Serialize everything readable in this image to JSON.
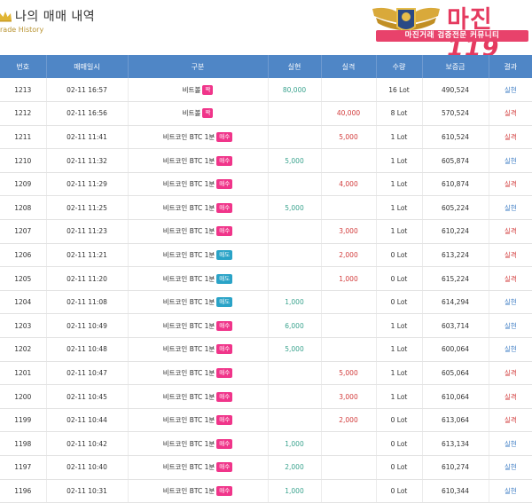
{
  "header": {
    "title": "나의 매매 내역",
    "subtitle": "rade History"
  },
  "logo": {
    "text": "마진",
    "number": "119",
    "tagline": "마진거래 검증전문 커뮤니티"
  },
  "colors": {
    "header_bg": "#4f86c6",
    "profit": "#3aa38e",
    "loss": "#d23b3b",
    "win": "#3e7dc4",
    "badge_buy": "#f0358a",
    "badge_sell": "#2aa3c7",
    "subtitle": "#b8922e"
  },
  "table": {
    "columns": [
      "번호",
      "매매일시",
      "구분",
      "실현",
      "실격",
      "수량",
      "보증금",
      "결과"
    ],
    "rows": [
      {
        "no": "1213",
        "datetime": "02-11 16:57",
        "type": "비트볼",
        "badge": "짝",
        "badge_kind": "buy",
        "profit": "80,000",
        "loss": "",
        "qty": "16 Lot",
        "deposit": "490,524",
        "result": "실현",
        "result_kind": "win"
      },
      {
        "no": "1212",
        "datetime": "02-11 16:56",
        "type": "비트볼",
        "badge": "짝",
        "badge_kind": "buy",
        "profit": "",
        "loss": "40,000",
        "qty": "8 Lot",
        "deposit": "570,524",
        "result": "실격",
        "result_kind": "loss"
      },
      {
        "no": "1211",
        "datetime": "02-11 11:41",
        "type": "비트코인 BTC 1분",
        "badge": "매수",
        "badge_kind": "buy",
        "profit": "",
        "loss": "5,000",
        "qty": "1 Lot",
        "deposit": "610,524",
        "result": "실격",
        "result_kind": "loss"
      },
      {
        "no": "1210",
        "datetime": "02-11 11:32",
        "type": "비트코인 BTC 1분",
        "badge": "매수",
        "badge_kind": "buy",
        "profit": "5,000",
        "loss": "",
        "qty": "1 Lot",
        "deposit": "605,874",
        "result": "실현",
        "result_kind": "win"
      },
      {
        "no": "1209",
        "datetime": "02-11 11:29",
        "type": "비트코인 BTC 1분",
        "badge": "매수",
        "badge_kind": "buy",
        "profit": "",
        "loss": "4,000",
        "qty": "1 Lot",
        "deposit": "610,874",
        "result": "실격",
        "result_kind": "loss"
      },
      {
        "no": "1208",
        "datetime": "02-11 11:25",
        "type": "비트코인 BTC 1분",
        "badge": "매수",
        "badge_kind": "buy",
        "profit": "5,000",
        "loss": "",
        "qty": "1 Lot",
        "deposit": "605,224",
        "result": "실현",
        "result_kind": "win"
      },
      {
        "no": "1207",
        "datetime": "02-11 11:23",
        "type": "비트코인 BTC 1분",
        "badge": "매수",
        "badge_kind": "buy",
        "profit": "",
        "loss": "3,000",
        "qty": "1 Lot",
        "deposit": "610,224",
        "result": "실격",
        "result_kind": "loss"
      },
      {
        "no": "1206",
        "datetime": "02-11 11:21",
        "type": "비트코인 BTC 1분",
        "badge": "매도",
        "badge_kind": "sell",
        "profit": "",
        "loss": "2,000",
        "qty": "0 Lot",
        "deposit": "613,224",
        "result": "실격",
        "result_kind": "loss"
      },
      {
        "no": "1205",
        "datetime": "02-11 11:20",
        "type": "비트코인 BTC 1분",
        "badge": "매도",
        "badge_kind": "sell",
        "profit": "",
        "loss": "1,000",
        "qty": "0 Lot",
        "deposit": "615,224",
        "result": "실격",
        "result_kind": "loss"
      },
      {
        "no": "1204",
        "datetime": "02-11 11:08",
        "type": "비트코인 BTC 1분",
        "badge": "매도",
        "badge_kind": "sell",
        "profit": "1,000",
        "loss": "",
        "qty": "0 Lot",
        "deposit": "614,294",
        "result": "실현",
        "result_kind": "win"
      },
      {
        "no": "1203",
        "datetime": "02-11 10:49",
        "type": "비트코인 BTC 1분",
        "badge": "매수",
        "badge_kind": "buy",
        "profit": "6,000",
        "loss": "",
        "qty": "1 Lot",
        "deposit": "603,714",
        "result": "실현",
        "result_kind": "win"
      },
      {
        "no": "1202",
        "datetime": "02-11 10:48",
        "type": "비트코인 BTC 1분",
        "badge": "매수",
        "badge_kind": "buy",
        "profit": "5,000",
        "loss": "",
        "qty": "1 Lot",
        "deposit": "600,064",
        "result": "실현",
        "result_kind": "win"
      },
      {
        "no": "1201",
        "datetime": "02-11 10:47",
        "type": "비트코인 BTC 1분",
        "badge": "매수",
        "badge_kind": "buy",
        "profit": "",
        "loss": "5,000",
        "qty": "1 Lot",
        "deposit": "605,064",
        "result": "실격",
        "result_kind": "loss"
      },
      {
        "no": "1200",
        "datetime": "02-11 10:45",
        "type": "비트코인 BTC 1분",
        "badge": "매수",
        "badge_kind": "buy",
        "profit": "",
        "loss": "3,000",
        "qty": "1 Lot",
        "deposit": "610,064",
        "result": "실격",
        "result_kind": "loss"
      },
      {
        "no": "1199",
        "datetime": "02-11 10:44",
        "type": "비트코인 BTC 1분",
        "badge": "매수",
        "badge_kind": "buy",
        "profit": "",
        "loss": "2,000",
        "qty": "0 Lot",
        "deposit": "613,064",
        "result": "실격",
        "result_kind": "loss"
      },
      {
        "no": "1198",
        "datetime": "02-11 10:42",
        "type": "비트코인 BTC 1분",
        "badge": "매수",
        "badge_kind": "buy",
        "profit": "1,000",
        "loss": "",
        "qty": "0 Lot",
        "deposit": "613,134",
        "result": "실현",
        "result_kind": "win"
      },
      {
        "no": "1197",
        "datetime": "02-11 10:40",
        "type": "비트코인 BTC 1분",
        "badge": "매수",
        "badge_kind": "buy",
        "profit": "2,000",
        "loss": "",
        "qty": "0 Lot",
        "deposit": "610,274",
        "result": "실현",
        "result_kind": "win"
      },
      {
        "no": "1196",
        "datetime": "02-11 10:31",
        "type": "비트코인 BTC 1분",
        "badge": "매수",
        "badge_kind": "buy",
        "profit": "1,000",
        "loss": "",
        "qty": "0 Lot",
        "deposit": "610,344",
        "result": "실현",
        "result_kind": "win"
      }
    ]
  }
}
